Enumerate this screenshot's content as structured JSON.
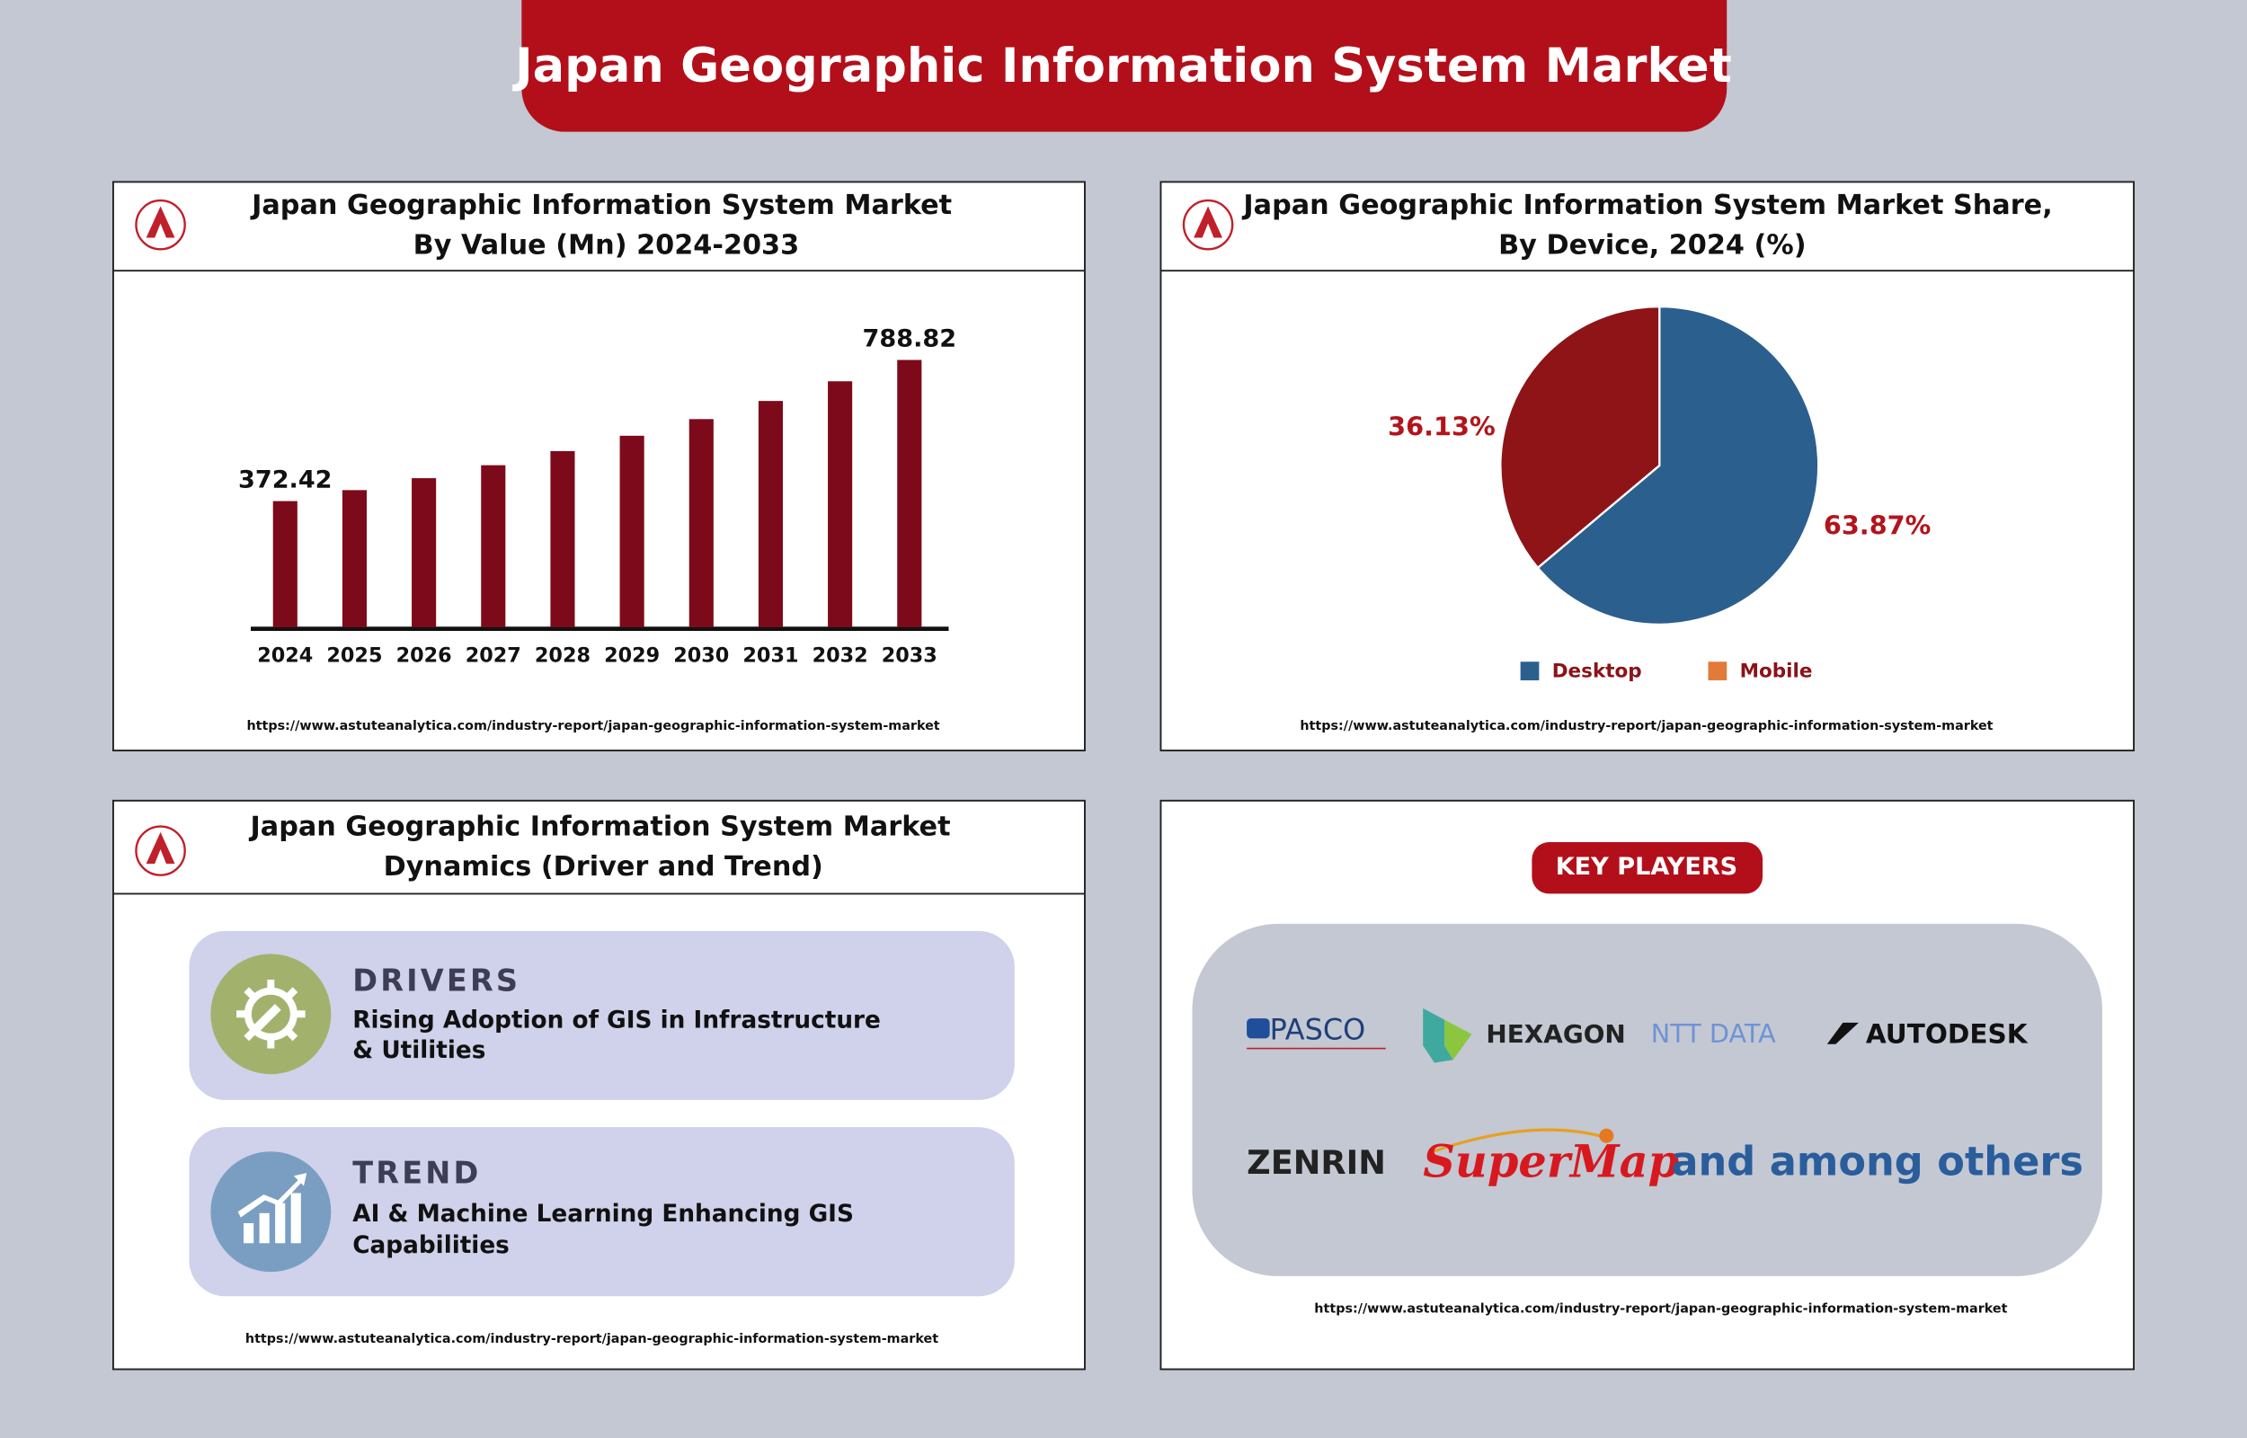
{
  "header": {
    "title": "Japan Geographic Information System Market"
  },
  "chart_data": [
    {
      "type": "bar",
      "title": [
        "Japan Geographic Information System Market",
        "By Value (Mn) 2024-2033"
      ],
      "categories": [
        "2024",
        "2025",
        "2026",
        "2027",
        "2028",
        "2029",
        "2030",
        "2031",
        "2032",
        "2033"
      ],
      "values": [
        372.42,
        404.8,
        440.0,
        478.3,
        519.9,
        565.2,
        614.3,
        667.8,
        725.9,
        788.82
      ],
      "value_labels": [
        "372.42",
        null,
        null,
        null,
        null,
        null,
        null,
        null,
        null,
        "788.82"
      ],
      "color": "#7d0a1a",
      "ylim": [
        0,
        900
      ],
      "source": "https://www.astuteanalytica.com/industry-report/japan-geographic-information-system-market"
    },
    {
      "type": "pie",
      "title": [
        "Japan Geographic Information System Market Share,",
        "By Device, 2024 (%)"
      ],
      "categories": [
        "Desktop",
        "Mobile"
      ],
      "values": [
        63.87,
        36.13
      ],
      "value_labels": [
        "63.87%",
        "36.13%"
      ],
      "colors": [
        "#2b5f8e",
        "#8e1418"
      ],
      "legend_colors": [
        "#2b5f8e",
        "#e07b39"
      ],
      "source": "https://www.astuteanalytica.com/industry-report/japan-geographic-information-system-market"
    }
  ],
  "dynamics": {
    "title": [
      "Japan Geographic Information System Market",
      "Dynamics (Driver and Trend)"
    ],
    "drivers": {
      "heading": "DRIVERS",
      "text": [
        "Rising Adoption of GIS in Infrastructure",
        "& Utilities"
      ]
    },
    "trend": {
      "heading": "TREND",
      "text": [
        "AI & Machine Learning Enhancing GIS",
        "Capabilities"
      ]
    },
    "source": "https://www.astuteanalytica.com/industry-report/japan-geographic-information-system-market"
  },
  "key_players": {
    "heading": "KEY PLAYERS",
    "players": [
      "PASCO",
      "HEXAGON",
      "NTT DATA",
      "AUTODESK",
      "ZENRIN",
      "SuperMap"
    ],
    "others": "and among others",
    "source": "https://www.astuteanalytica.com/industry-report/japan-geographic-information-system-market"
  }
}
